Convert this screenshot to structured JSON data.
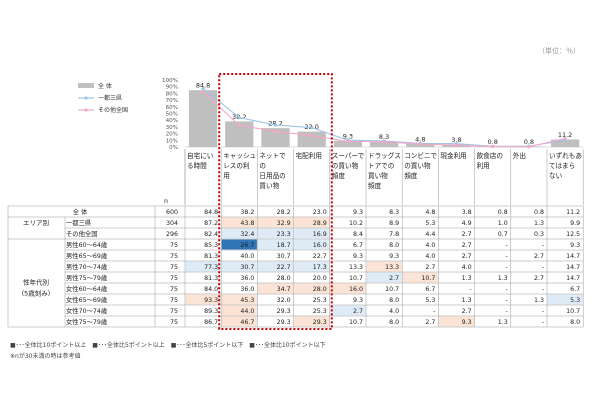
{
  "unit_label": "（単位：％）",
  "colors": {
    "bar": "#bfbfbf",
    "line_metro": "#9dc3e6",
    "line_other": "#f4a6c8",
    "pink_hi": "#f8cbad",
    "pink_lo": "#fbe4d5",
    "blue_lo": "#deebf7",
    "blue_hi": "#2e75b6",
    "highlight_box": "#c00000"
  },
  "legend": [
    "全 体",
    "一都三県",
    "その他全国"
  ],
  "chart_data": {
    "type": "bar",
    "categories": [
      "自宅にいる時間",
      "キャッシュレスの利用",
      "ネットでの日用品の買い物",
      "宅配利用",
      "スーパーでの買い物頻度",
      "ドラッグストアでの買い物頻度",
      "コンビニでの買い物頻度",
      "現金利用",
      "飲食店の利用",
      "外出",
      "いずれもあてはまらない"
    ],
    "series": [
      {
        "name": "全 体",
        "values": [
          84.8,
          38.2,
          28.2,
          23.0,
          9.3,
          8.3,
          4.8,
          3.8,
          0.8,
          0.8,
          11.2
        ]
      },
      {
        "name": "一都三県",
        "values": [
          87.2,
          43.8,
          32.9,
          28.9,
          10.2,
          8.9,
          5.3,
          4.9,
          1.0,
          1.3,
          9.9
        ]
      },
      {
        "name": "その他全国",
        "values": [
          82.4,
          32.4,
          23.3,
          16.9,
          8.4,
          7.8,
          4.4,
          2.7,
          0.7,
          0.3,
          12.5
        ]
      }
    ],
    "ylim": [
      0,
      100
    ],
    "yticks": [
      "0%",
      "10%",
      "20%",
      "30%",
      "40%",
      "50%",
      "60%",
      "70%",
      "80%",
      "90%",
      "100%"
    ]
  },
  "category_display": [
    [
      "自宅にい",
      "る時間"
    ],
    [
      "キャッシュ",
      "レスの利",
      "用"
    ],
    [
      "ネットで",
      "の",
      "日用品の",
      "買い物"
    ],
    [
      "宅配利用"
    ],
    [
      "スーパーで",
      "の買い物",
      "頻度"
    ],
    [
      "ドラッグス",
      "トアでの",
      "買い物",
      "頻度"
    ],
    [
      "コンビニで",
      "の買い物",
      "頻度"
    ],
    [
      "現金利用"
    ],
    [
      "飲食店の",
      "利用"
    ],
    [
      "外出"
    ],
    [
      "いずれもあ",
      "てはまら",
      "ない"
    ]
  ],
  "table": {
    "n_header": "n",
    "rows": [
      {
        "group": "",
        "label": "全 体",
        "n": "600",
        "values": [
          "84.8",
          "38.2",
          "28.2",
          "23.0",
          "9.3",
          "8.3",
          "4.8",
          "3.8",
          "0.8",
          "0.8",
          "11.2"
        ],
        "marks": [
          "",
          "",
          "",
          "",
          "",
          "",
          "",
          "",
          "",
          "",
          ""
        ]
      },
      {
        "group": "エリア別",
        "label": "一都三県",
        "n": "304",
        "values": [
          "87.2",
          "43.8",
          "32.9",
          "28.9",
          "10.2",
          "8.9",
          "5.3",
          "4.9",
          "1.0",
          "1.3",
          "9.9"
        ],
        "marks": [
          "",
          "lo",
          "lo",
          "lo",
          "",
          "",
          "",
          "",
          "",
          "",
          ""
        ]
      },
      {
        "group": "",
        "label": "その他全国",
        "n": "296",
        "values": [
          "82.4",
          "32.4",
          "23.3",
          "16.9",
          "8.4",
          "7.8",
          "4.4",
          "2.7",
          "0.7",
          "0.3",
          "12.5"
        ],
        "marks": [
          "",
          "bl",
          "bl",
          "bl",
          "",
          "",
          "",
          "",
          "",
          "",
          ""
        ]
      },
      {
        "group": "",
        "label": "男性60～64歳",
        "n": "75",
        "values": [
          "85.3",
          "26.7",
          "18.7",
          "16.0",
          "6.7",
          "8.0",
          "4.0",
          "2.7",
          "-",
          "-",
          "9.3"
        ],
        "marks": [
          "",
          "bh",
          "bl",
          "bl",
          "",
          "",
          "",
          "",
          "",
          "",
          ""
        ]
      },
      {
        "group": "",
        "label": "男性65～69歳",
        "n": "75",
        "values": [
          "81.3",
          "40.0",
          "30.7",
          "22.7",
          "9.3",
          "9.3",
          "4.0",
          "2.7",
          "-",
          "2.7",
          "14.7"
        ],
        "marks": [
          "",
          "",
          "",
          "",
          "",
          "",
          "",
          "",
          "",
          "",
          ""
        ]
      },
      {
        "group": "",
        "label": "男性70～74歳",
        "n": "75",
        "values": [
          "77.3",
          "30.7",
          "22.7",
          "17.3",
          "13.3",
          "13.3",
          "2.7",
          "4.0",
          "-",
          "-",
          "14.7"
        ],
        "marks": [
          "bl",
          "bl",
          "bl",
          "bl",
          "",
          "lo",
          "",
          "",
          "",
          "",
          ""
        ]
      },
      {
        "group": "性年代別",
        "label": "男性75～79歳",
        "n": "75",
        "values": [
          "81.3",
          "36.0",
          "28.0",
          "20.0",
          "10.7",
          "2.7",
          "10.7",
          "1.3",
          "1.3",
          "2.7",
          "14.7"
        ],
        "marks": [
          "",
          "",
          "",
          "",
          "",
          "bl",
          "lo",
          "",
          "",
          "",
          ""
        ]
      },
      {
        "group": "（5歳刻み）",
        "label": "女性60～64歳",
        "n": "75",
        "values": [
          "84.0",
          "36.0",
          "34.7",
          "28.0",
          "16.0",
          "10.7",
          "6.7",
          "-",
          "-",
          "-",
          "6.7"
        ],
        "marks": [
          "",
          "",
          "lo",
          "lo",
          "lo",
          "",
          "",
          "",
          "",
          "",
          ""
        ]
      },
      {
        "group": "",
        "label": "女性65～69歳",
        "n": "75",
        "values": [
          "93.3",
          "45.3",
          "32.0",
          "25.3",
          "9.3",
          "8.0",
          "5.3",
          "1.3",
          "-",
          "1.3",
          "5.3"
        ],
        "marks": [
          "lo",
          "lo",
          "",
          "",
          "",
          "",
          "",
          "",
          "",
          "",
          "bl"
        ]
      },
      {
        "group": "",
        "label": "女性70～74歳",
        "n": "75",
        "values": [
          "89.3",
          "44.0",
          "29.3",
          "25.3",
          "2.7",
          "4.0",
          "-",
          "2.7",
          "-",
          "-",
          "10.7"
        ],
        "marks": [
          "",
          "lo",
          "",
          "",
          "bl",
          "",
          "",
          "",
          "",
          "",
          ""
        ]
      },
      {
        "group": "",
        "label": "女性75～79歳",
        "n": "75",
        "values": [
          "86.7",
          "46.7",
          "29.3",
          "29.3",
          "10.7",
          "8.0",
          "2.7",
          "9.3",
          "1.3",
          "-",
          "8.0"
        ],
        "marks": [
          "",
          "lo",
          "",
          "lo",
          "",
          "",
          "",
          "lo",
          "",
          "",
          ""
        ]
      }
    ]
  },
  "notes": {
    "legend_line": "■･･･全体比10ポイント以上　■･･･全体比5ポイント以上　■･･･全体比5ポイント以下　■･･･全体比10ポイント以下",
    "footnote": "※nが30未満の時は参考値"
  }
}
